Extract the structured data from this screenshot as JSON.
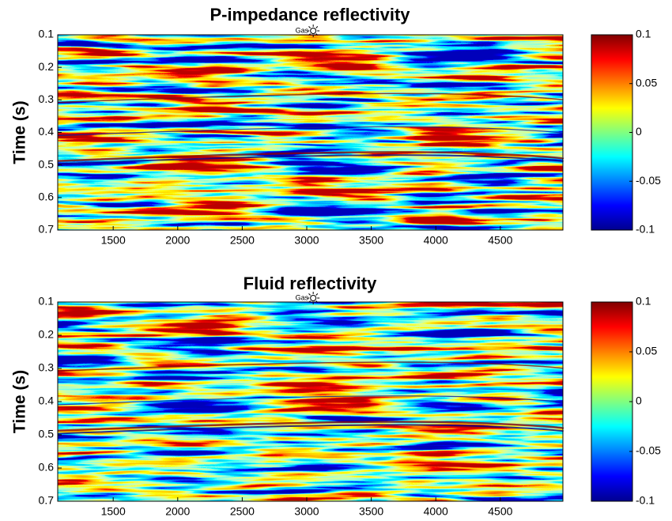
{
  "chart_data": [
    {
      "type": "heatmap",
      "title": "P-impedance reflectivity",
      "ylabel": "Time (s)",
      "xlim": [
        1070,
        4985
      ],
      "xticks": [
        1500,
        2000,
        2500,
        3000,
        3500,
        4000,
        4500
      ],
      "ylim": [
        0.1,
        0.7
      ],
      "yticks": [
        0.1,
        0.2,
        0.3,
        0.4,
        0.5,
        0.6,
        0.7
      ],
      "y_inverted": true,
      "colormap": "jet",
      "clim": [
        -0.1,
        0.1
      ],
      "cticks": [
        -0.1,
        -0.05,
        0,
        0.05,
        0.1
      ],
      "annotations": [
        {
          "text": "Gas",
          "x": 3050
        }
      ]
    },
    {
      "type": "heatmap",
      "title": "Fluid reflectivity",
      "ylabel": "Time (s)",
      "xlim": [
        1070,
        4985
      ],
      "xticks": [
        1500,
        2000,
        2500,
        3000,
        3500,
        4000,
        4500
      ],
      "ylim": [
        0.1,
        0.7
      ],
      "yticks": [
        0.1,
        0.2,
        0.3,
        0.4,
        0.5,
        0.6,
        0.7
      ],
      "y_inverted": true,
      "colormap": "jet",
      "clim": [
        -0.1,
        0.1
      ],
      "cticks": [
        -0.1,
        -0.05,
        0,
        0.05,
        0.1
      ],
      "annotations": [
        {
          "text": "Gas",
          "x": 3050
        }
      ]
    }
  ]
}
